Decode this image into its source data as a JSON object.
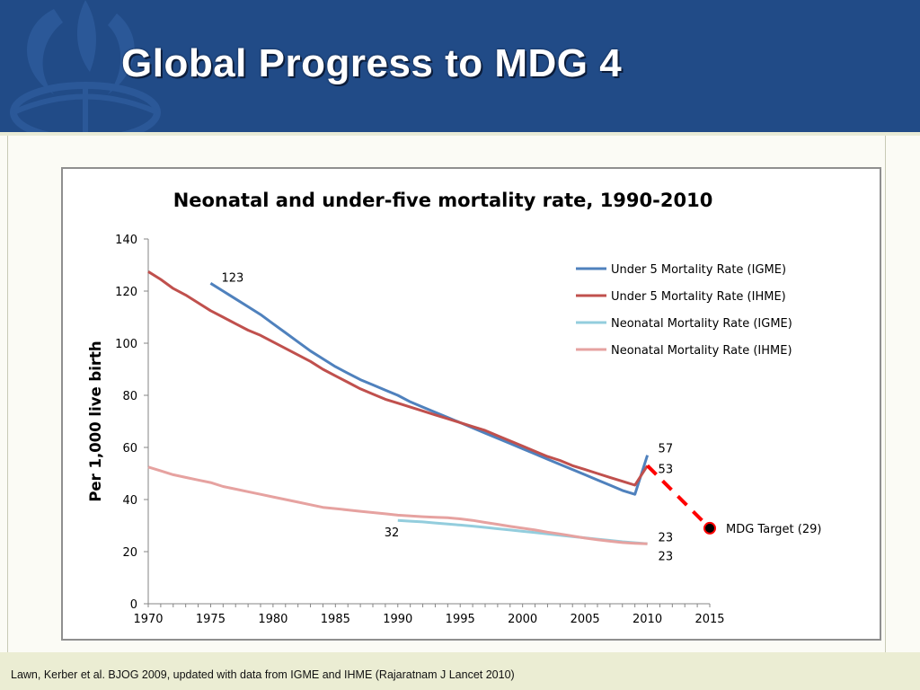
{
  "slide": {
    "title": "Global Progress to MDG 4",
    "source": "Lawn, Kerber et al. BJOG 2009, updated with data from IGME and IHME (Rajaratnam J Lancet 2010)"
  },
  "colors": {
    "header": "#214b87",
    "igme_u5": "#4f81bd",
    "ihme_u5": "#c0504d",
    "igme_neo": "#93cddd",
    "ihme_neo": "#e6a2a0",
    "target": "#ff0000"
  },
  "chart_data": {
    "type": "line",
    "title": "Neonatal and under-five mortality rate, 1990-2010",
    "ylabel": "Per 1,000 live birth",
    "xlabel": "",
    "xlim": [
      1970,
      2015
    ],
    "ylim": [
      0,
      140
    ],
    "x_ticks": [
      1970,
      1975,
      1980,
      1985,
      1990,
      1995,
      2000,
      2005,
      2010,
      2015
    ],
    "y_ticks": [
      0,
      20,
      40,
      60,
      80,
      100,
      120,
      140
    ],
    "grid": false,
    "legend_position": "top-right",
    "series": [
      {
        "name": "Under 5 Mortality Rate (IGME)",
        "color": "#4f81bd",
        "x": [
          1975,
          1976,
          1977,
          1978,
          1979,
          1980,
          1981,
          1982,
          1983,
          1984,
          1985,
          1986,
          1987,
          1988,
          1989,
          1990,
          1991,
          1992,
          1993,
          1994,
          1995,
          1996,
          1997,
          1998,
          1999,
          2000,
          2001,
          2002,
          2003,
          2004,
          2005,
          2006,
          2007,
          2008,
          2009,
          2010
        ],
        "values": [
          123,
          120,
          117,
          114,
          111,
          107.5,
          104,
          100.5,
          97,
          94,
          91,
          88.5,
          86,
          84,
          82,
          80,
          77.5,
          75.5,
          73.5,
          71.5,
          69.5,
          67.5,
          65.5,
          63.5,
          61.5,
          59.5,
          57.5,
          55.5,
          53.5,
          51.5,
          49.5,
          47.5,
          45.5,
          43.5,
          42,
          57
        ]
      },
      {
        "name": "Under 5 Mortality Rate (IHME)",
        "color": "#c0504d",
        "x": [
          1970,
          1971,
          1972,
          1973,
          1974,
          1975,
          1976,
          1977,
          1978,
          1979,
          1980,
          1981,
          1982,
          1983,
          1984,
          1985,
          1986,
          1987,
          1988,
          1989,
          1990,
          1991,
          1992,
          1993,
          1994,
          1995,
          1996,
          1997,
          1998,
          1999,
          2000,
          2001,
          2002,
          2003,
          2004,
          2005,
          2006,
          2007,
          2008,
          2009,
          2010
        ],
        "values": [
          127.5,
          124.5,
          121,
          118.5,
          115.5,
          112.5,
          110,
          107.5,
          105,
          103,
          100.5,
          98,
          95.5,
          93,
          90,
          87.5,
          85,
          82.5,
          80.5,
          78.5,
          77,
          75.5,
          74,
          72.5,
          71,
          69.5,
          68,
          66.5,
          64.5,
          62.5,
          60.5,
          58.5,
          56.5,
          55,
          53,
          51.5,
          50,
          48.5,
          47,
          45.5,
          53
        ]
      },
      {
        "name": "Neonatal Mortality Rate (IGME)",
        "color": "#93cddd",
        "x": [
          1990,
          1991,
          1992,
          1993,
          1994,
          1995,
          1996,
          1997,
          1998,
          1999,
          2000,
          2001,
          2002,
          2003,
          2004,
          2005,
          2006,
          2007,
          2008,
          2009,
          2010
        ],
        "values": [
          32,
          31.7,
          31.4,
          31,
          30.6,
          30.2,
          29.8,
          29.3,
          28.8,
          28.3,
          27.8,
          27.3,
          26.8,
          26.3,
          25.8,
          25.3,
          24.8,
          24.3,
          23.8,
          23.4,
          23
        ]
      },
      {
        "name": "Neonatal Mortality Rate (IHME)",
        "color": "#e6a2a0",
        "x": [
          1970,
          1971,
          1972,
          1973,
          1974,
          1975,
          1976,
          1977,
          1978,
          1979,
          1980,
          1981,
          1982,
          1983,
          1984,
          1985,
          1986,
          1987,
          1988,
          1989,
          1990,
          1991,
          1992,
          1993,
          1994,
          1995,
          1996,
          1997,
          1998,
          1999,
          2000,
          2001,
          2002,
          2003,
          2004,
          2005,
          2006,
          2007,
          2008,
          2009,
          2010
        ],
        "values": [
          52.5,
          51,
          49.5,
          48.5,
          47.5,
          46.5,
          45,
          44,
          43,
          42,
          41,
          40,
          39,
          38,
          37,
          36.5,
          36,
          35.5,
          35,
          34.5,
          34,
          33.7,
          33.4,
          33.2,
          33,
          32.6,
          32,
          31.2,
          30.5,
          29.7,
          29,
          28.3,
          27.5,
          26.8,
          26,
          25.2,
          24.6,
          24,
          23.5,
          23.2,
          23
        ]
      },
      {
        "name": "MDG Target trajectory",
        "color": "#ff0000",
        "style": "dashed",
        "x": [
          2010,
          2015
        ],
        "values": [
          53,
          29
        ]
      }
    ],
    "annotations": [
      {
        "text": "123",
        "x": 1975,
        "y": 123
      },
      {
        "text": "57",
        "x": 2010,
        "y": 57
      },
      {
        "text": "53",
        "x": 2010,
        "y": 53
      },
      {
        "text": "23",
        "x": 2010,
        "y": 23
      },
      {
        "text": "23",
        "x": 2010,
        "y": 23
      },
      {
        "text": "32",
        "x": 1990,
        "y": 32
      },
      {
        "text": "MDG Target  (29)",
        "x": 2015,
        "y": 29
      }
    ],
    "target_point": {
      "x": 2015,
      "y": 29
    }
  }
}
